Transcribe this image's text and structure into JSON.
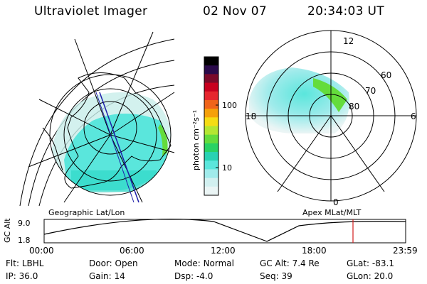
{
  "header": {
    "instrument": "Ultraviolet Imager",
    "date": "02 Nov 07",
    "time": "20:34:03 UT"
  },
  "geographic_panel": {
    "label": "Geographic Lat/Lon"
  },
  "colorbar": {
    "unit_label": "photon cm⁻²s⁻¹",
    "ticks": [
      "100",
      "10"
    ],
    "colors": [
      "#000000",
      "#2a0a4a",
      "#7a0a2a",
      "#c8001e",
      "#e6262e",
      "#f0641a",
      "#f5a00a",
      "#f5dc14",
      "#b4e632",
      "#64dc3c",
      "#28d264",
      "#28d2b4",
      "#5ae6dc",
      "#a0ebeb",
      "#d2f0f0",
      "#ebf5f5"
    ]
  },
  "apex_panel": {
    "label": "Apex MLat/MLT",
    "lat_labels": [
      "60",
      "70",
      "80"
    ],
    "mlt_labels": {
      "top": "12",
      "left": "18",
      "right": "6",
      "bottom": "0"
    }
  },
  "altitude_plot": {
    "ylabel": "GC Alt",
    "yticks": [
      "9.0",
      "1.8"
    ],
    "xticks": [
      "00:00",
      "06:00",
      "12:00",
      "18:00",
      "23:59"
    ],
    "current_time_marker": "20:34"
  },
  "info_rows": [
    [
      {
        "label": "Flt:",
        "value": "LBHL"
      },
      {
        "label": "Door:",
        "value": "Open"
      },
      {
        "label": "Mode:",
        "value": "Normal"
      },
      {
        "label": "GC Alt:",
        "value": "7.4 Re"
      },
      {
        "label": "GLat:",
        "value": "-83.1"
      }
    ],
    [
      {
        "label": "IP:",
        "value": "36.0"
      },
      {
        "label": "Gain:",
        "value": "14"
      },
      {
        "label": "Dsp:",
        "value": "-4.0"
      },
      {
        "label": "Seq:",
        "value": "39"
      },
      {
        "label": "GLon:",
        "value": "20.0"
      }
    ]
  ],
  "colors": {
    "aurora_low": "#5ae6dc",
    "aurora_high": "#64dc3c",
    "marker": "#d21e1e",
    "track": "#1e1eaa"
  }
}
